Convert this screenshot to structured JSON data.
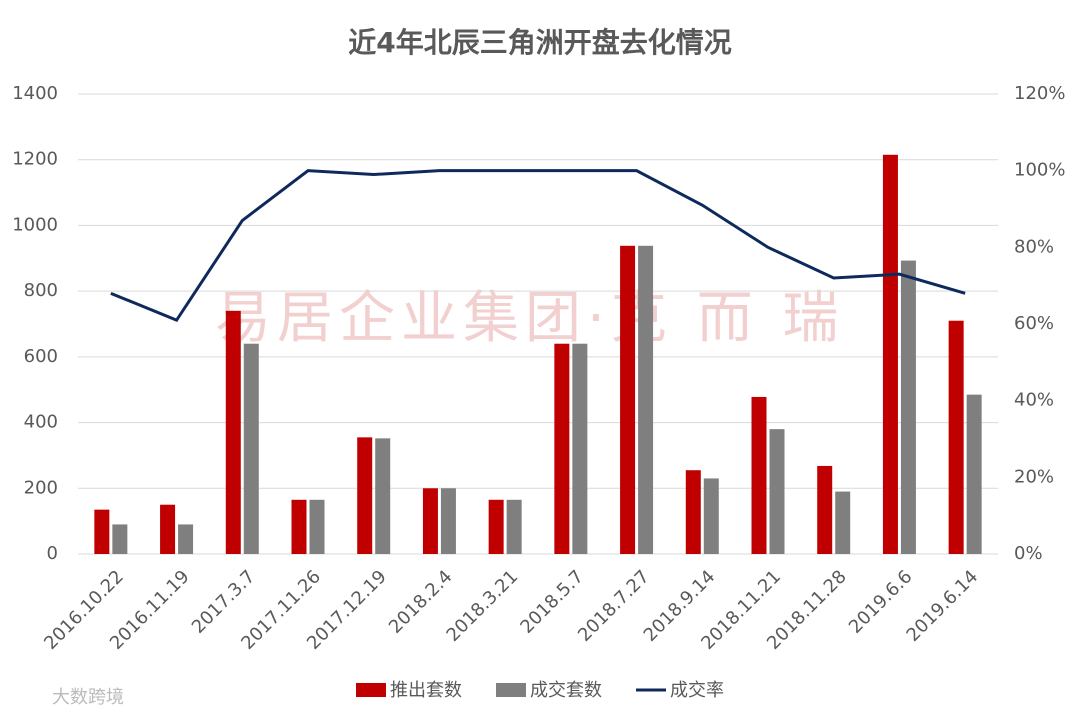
{
  "chart_data": {
    "type": "bar_line",
    "title": "近4年北辰三角洲开盘去化情况",
    "categories": [
      "2016.10.22",
      "2016.11.19",
      "2017.3.7",
      "2017.11.26",
      "2017.12.19",
      "2018.2.4",
      "2018.3.21",
      "2018.5.7",
      "2018.7.27",
      "2018.9.14",
      "2018.11.21",
      "2018.11.28",
      "2019.6.6",
      "2019.6.14"
    ],
    "series": [
      {
        "name": "推出套数",
        "color": "#c00000",
        "values": [
          135,
          150,
          740,
          165,
          355,
          200,
          165,
          640,
          938,
          255,
          478,
          268,
          1215,
          710
        ]
      },
      {
        "name": "成交套数",
        "color": "#7f7f7f",
        "values": [
          90,
          90,
          640,
          165,
          352,
          200,
          165,
          640,
          938,
          230,
          380,
          190,
          893,
          485
        ]
      },
      {
        "name": "成交率",
        "color": "#0e2a5c",
        "axis": "y2",
        "values": [
          68,
          61,
          87,
          100,
          99,
          100,
          100,
          100,
          100,
          91,
          80,
          72,
          73,
          68
        ]
      }
    ],
    "ylim": [
      0,
      1400
    ],
    "yticks": [
      0,
      200,
      400,
      600,
      800,
      1000,
      1200,
      1400
    ],
    "y2lim": [
      0,
      120
    ],
    "y2ticks": [
      {
        "value": 0,
        "label": "0%"
      },
      {
        "value": 20,
        "label": "20%"
      },
      {
        "value": 40,
        "label": "40%"
      },
      {
        "value": 60,
        "label": "60%"
      },
      {
        "value": 80,
        "label": "80%"
      },
      {
        "value": 100,
        "label": "100%"
      },
      {
        "value": 120,
        "label": "120%"
      }
    ],
    "grid": true,
    "legend": "bottom",
    "annotations": [
      "易居企业集团·克 而 瑞",
      "大数跨境"
    ]
  }
}
